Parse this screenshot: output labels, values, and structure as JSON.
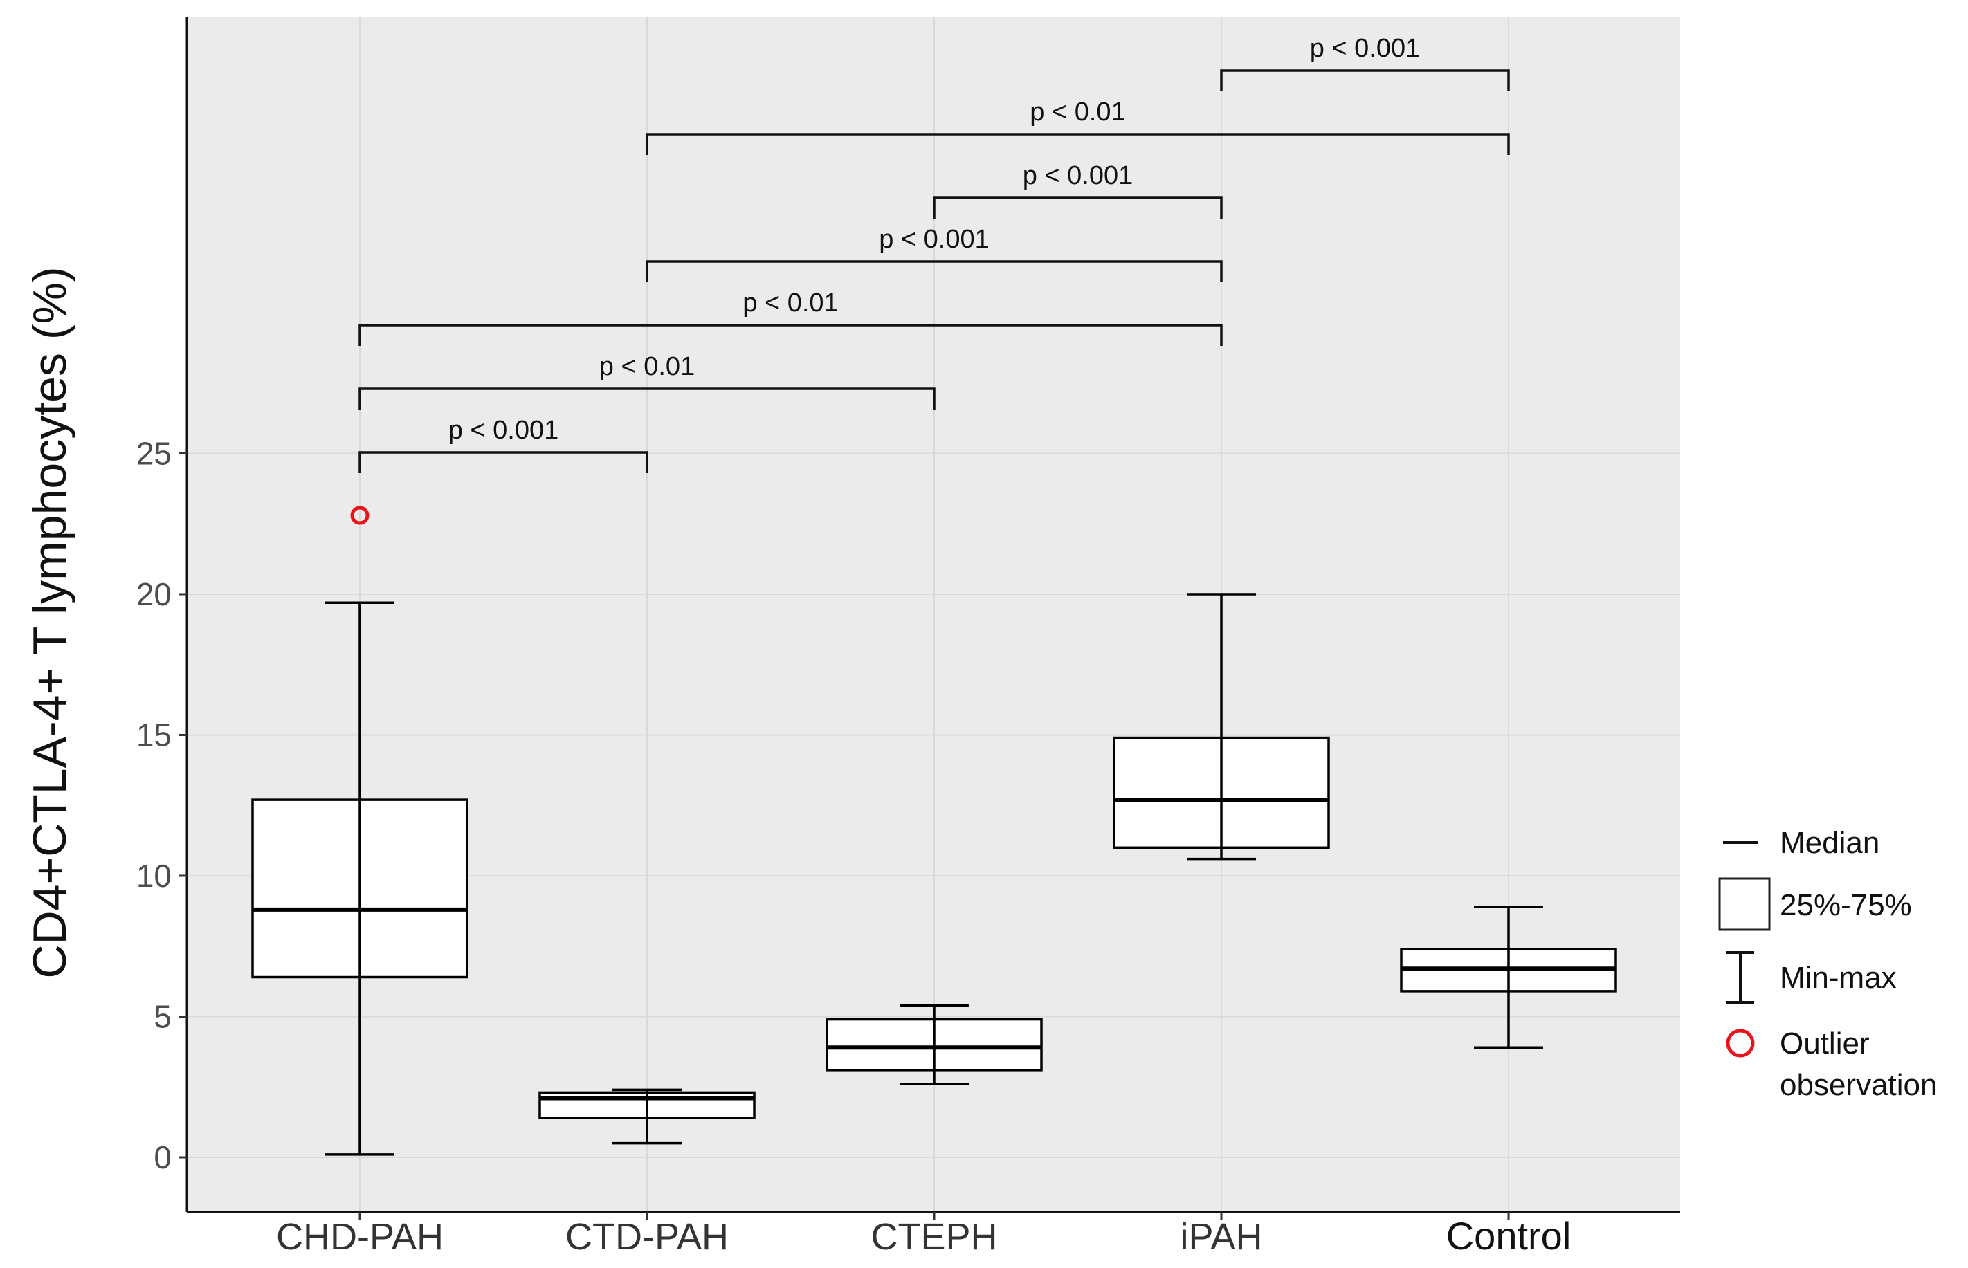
{
  "chart_data": {
    "type": "box",
    "ylabel": "CD4+CTLA-4+ T lymphocytes (%)",
    "xlabel": "",
    "ylim": [
      -1.8,
      40.5
    ],
    "yticks": [
      0,
      5,
      10,
      15,
      20,
      25
    ],
    "grid": true,
    "categories": [
      "CHD-PAH",
      "CTD-PAH",
      "CTEPH",
      "iPAH",
      "Control"
    ],
    "boxes": [
      {
        "group": "CHD-PAH",
        "min": 0.1,
        "q1": 6.4,
        "median": 8.8,
        "q3": 12.7,
        "max": 19.7
      },
      {
        "group": "CTD-PAH",
        "min": 0.5,
        "q1": 1.4,
        "median": 2.1,
        "q3": 2.3,
        "max": 2.4
      },
      {
        "group": "CTEPH",
        "min": 2.6,
        "q1": 3.1,
        "median": 3.9,
        "q3": 4.9,
        "max": 5.4
      },
      {
        "group": "iPAH",
        "min": 10.6,
        "q1": 11.0,
        "median": 12.7,
        "q3": 14.9,
        "max": 20.0
      },
      {
        "group": "Control",
        "min": 3.9,
        "q1": 5.9,
        "median": 6.7,
        "q3": 7.4,
        "max": 8.9
      }
    ],
    "outliers": [
      {
        "group": "CHD-PAH",
        "value": 22.8
      }
    ],
    "comparisons": [
      {
        "from": "CHD-PAH",
        "to": "CTD-PAH",
        "label": "p < 0.001"
      },
      {
        "from": "CHD-PAH",
        "to": "CTEPH",
        "label": "p < 0.01"
      },
      {
        "from": "CHD-PAH",
        "to": "iPAH",
        "label": "p < 0.01"
      },
      {
        "from": "CTD-PAH",
        "to": "iPAH",
        "label": "p < 0.001"
      },
      {
        "from": "CTEPH",
        "to": "iPAH",
        "label": "p < 0.001"
      },
      {
        "from": "CTD-PAH",
        "to": "Control",
        "label": "p < 0.01"
      },
      {
        "from": "iPAH",
        "to": "Control",
        "label": "p < 0.001"
      }
    ],
    "legend": {
      "placement": "right",
      "items": [
        {
          "symbol": "median-line",
          "label": "Median"
        },
        {
          "symbol": "box",
          "label": "25%-75%"
        },
        {
          "symbol": "whisker",
          "label": "Min-max"
        },
        {
          "symbol": "outlier-circle",
          "label": "Outlier",
          "label2": "observation"
        }
      ]
    },
    "colors": {
      "panel": "#ebebeb",
      "grid": "#d9d9d9",
      "box_fill": "#ffffff",
      "stroke": "#000000",
      "outlier": "#e8141c"
    }
  }
}
